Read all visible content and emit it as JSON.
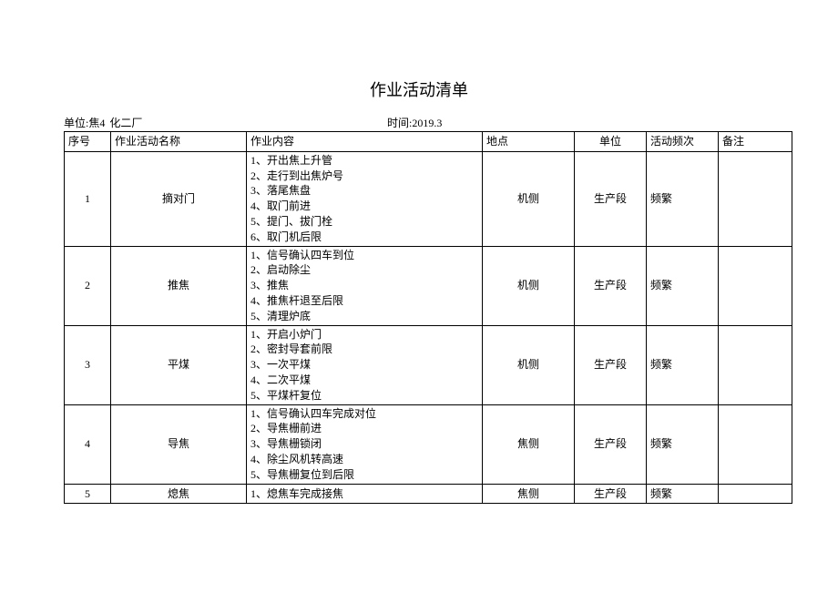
{
  "title": "作业活动清单",
  "meta": {
    "unit_label": "单位:焦4",
    "unit_value": "化二厂",
    "time_label": "时间:",
    "time_value": "2019.3"
  },
  "columns": {
    "seq": "序号",
    "name": "作业活动名称",
    "content": "作业内容",
    "loc": "地点",
    "unit": "单位",
    "freq": "活动频次",
    "note": "备注"
  },
  "rows": [
    {
      "seq": "1",
      "name": "摘对门",
      "content": "1、开出焦上升管\n2、走行到出焦炉号\n3、落尾焦盘\n4、取门前进\n5、提门、拔门栓\n6、取门机后限",
      "loc": "机侧",
      "unit": "生产段",
      "freq": "频繁",
      "note": ""
    },
    {
      "seq": "2",
      "name": "推焦",
      "content": "1、信号确认四车到位\n2、启动除尘\n3、推焦\n4、推焦杆退至后限\n5、清理炉底",
      "loc": "机侧",
      "unit": "生产段",
      "freq": "频繁",
      "note": ""
    },
    {
      "seq": "3",
      "name": "平煤",
      "content": "1、开启小炉门\n2、密封导套前限\n3、一次平煤\n4、二次平煤\n5、平煤杆复位",
      "loc": "机侧",
      "unit": "生产段",
      "freq": "频繁",
      "note": ""
    },
    {
      "seq": "4",
      "name": "导焦",
      "content": "1、信号确认四车完成对位\n2、导焦栅前进\n3、导焦栅锁闭\n4、除尘风机转高速\n5、导焦栅复位到后限",
      "loc": "焦侧",
      "unit": "生产段",
      "freq": "频繁",
      "note": ""
    },
    {
      "seq": "5",
      "name": "熄焦",
      "content": "1、熄焦车完成接焦",
      "loc": "焦侧",
      "unit": "生产段",
      "freq": "频繁",
      "note": ""
    }
  ],
  "colors": {
    "background": "#ffffff",
    "border": "#000000",
    "text": "#000000"
  }
}
